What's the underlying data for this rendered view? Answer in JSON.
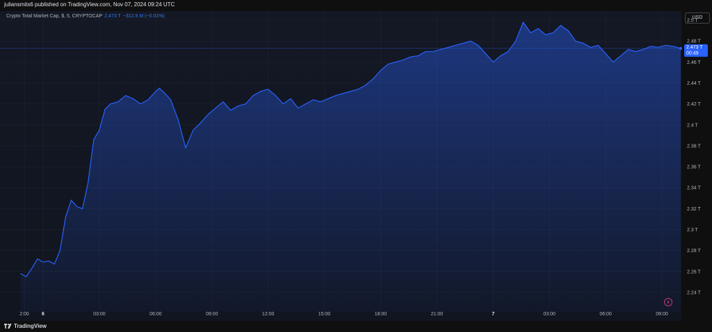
{
  "header": {
    "published_text": "juliansmits6 published on TradingView.com, Nov 07, 2024 09:24 UTC"
  },
  "legend": {
    "symbol_text": "Crypto Total Market Cap, $, 5, CRYPTOCAP",
    "value": "2.473 T",
    "change": "−312.5 M (−0.01%)"
  },
  "currency_button": {
    "label": "USD"
  },
  "price_label": {
    "value": "2.473 T",
    "countdown": "00:49"
  },
  "footer": {
    "brand": "TradingView"
  },
  "colors": {
    "line": "#2962ff",
    "accent": "#2962ff",
    "background": "#141824",
    "grid": "#1f2330"
  },
  "icons": {
    "brand": "tradingview-logo-icon",
    "lightning": "lightning-icon"
  },
  "chart_data": {
    "type": "area",
    "title": "",
    "xlabel": "",
    "ylabel": "",
    "ylim": [
      2.23,
      2.51
    ],
    "y_ticks": [
      "2.5 T",
      "2.48 T",
      "2.46 T",
      "2.44 T",
      "2.42 T",
      "2.4 T",
      "2.38 T",
      "2.36 T",
      "2.34 T",
      "2.32 T",
      "2.3 T",
      "2.28 T",
      "2.26 T",
      "2.24 T"
    ],
    "y_tick_values": [
      2.5,
      2.48,
      2.46,
      2.44,
      2.42,
      2.4,
      2.38,
      2.36,
      2.34,
      2.32,
      2.3,
      2.28,
      2.26,
      2.24
    ],
    "x_ticks": [
      "2:00",
      "6",
      "03:00",
      "06:00",
      "09:00",
      "12:00",
      "15:00",
      "18:00",
      "21:00",
      "7",
      "03:00",
      "06:00",
      "09:00"
    ],
    "x_tick_hours": [
      -1.0,
      0,
      3,
      6,
      9,
      12,
      15,
      18,
      21,
      24,
      27,
      30,
      33
    ],
    "x_range_hours": [
      -1.2,
      34.5
    ],
    "grid": true,
    "legend_position": "top-left",
    "series": [
      {
        "hours": [
          -1.2,
          -0.9,
          -0.6,
          -0.3,
          0.0,
          0.3,
          0.6,
          0.9,
          1.2,
          1.5,
          1.8,
          2.1,
          2.4,
          2.7,
          3.0,
          3.3,
          3.6,
          4.0,
          4.4,
          4.8,
          5.2,
          5.6,
          6.0,
          6.2,
          6.5,
          6.8,
          7.2,
          7.6,
          8.0,
          8.4,
          8.8,
          9.2,
          9.6,
          10.0,
          10.4,
          10.8,
          11.2,
          11.6,
          12.0,
          12.4,
          12.8,
          13.2,
          13.6,
          14.0,
          14.4,
          14.8,
          15.2,
          15.6,
          16.0,
          16.4,
          16.8,
          17.2,
          17.6,
          18.0,
          18.4,
          18.8,
          19.2,
          19.6,
          20.0,
          20.4,
          20.8,
          21.2,
          21.6,
          22.0,
          22.4,
          22.8,
          23.2,
          23.6,
          24.0,
          24.4,
          24.8,
          25.2,
          25.6,
          26.0,
          26.4,
          26.8,
          27.2,
          27.6,
          28.0,
          28.4,
          28.8,
          29.2,
          29.6,
          30.0,
          30.4,
          30.8,
          31.2,
          31.6,
          32.0,
          32.4,
          32.8,
          33.2,
          33.6,
          34.0
        ],
        "values": [
          2.258,
          2.255,
          2.263,
          2.272,
          2.269,
          2.27,
          2.267,
          2.28,
          2.312,
          2.328,
          2.322,
          2.32,
          2.345,
          2.386,
          2.395,
          2.415,
          2.42,
          2.422,
          2.428,
          2.425,
          2.42,
          2.424,
          2.432,
          2.435,
          2.43,
          2.424,
          2.405,
          2.378,
          2.395,
          2.402,
          2.41,
          2.416,
          2.422,
          2.414,
          2.418,
          2.42,
          2.428,
          2.432,
          2.434,
          2.428,
          2.42,
          2.425,
          2.416,
          2.42,
          2.424,
          2.422,
          2.425,
          2.428,
          2.43,
          2.432,
          2.434,
          2.438,
          2.444,
          2.452,
          2.458,
          2.46,
          2.462,
          2.465,
          2.466,
          2.47,
          2.47,
          2.472,
          2.474,
          2.476,
          2.478,
          2.48,
          2.476,
          2.468,
          2.46,
          2.466,
          2.47,
          2.48,
          2.498,
          2.488,
          2.492,
          2.486,
          2.488,
          2.495,
          2.49,
          2.48,
          2.478,
          2.474,
          2.476,
          2.468,
          2.46,
          2.466,
          2.472,
          2.47,
          2.472,
          2.475,
          2.474,
          2.476,
          2.475,
          2.473
        ]
      }
    ]
  }
}
